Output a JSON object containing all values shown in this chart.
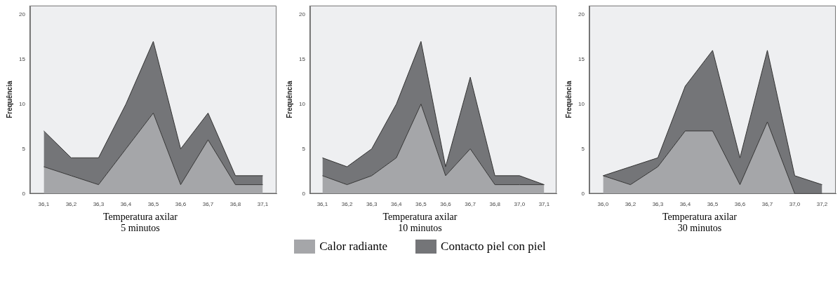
{
  "chart_data": [
    {
      "type": "area",
      "stacked": true,
      "xlabel": "Temperatura axilar",
      "subtitle": "5 minutos",
      "ylabel": "Frequência",
      "categories": [
        "36,1",
        "36,2",
        "36,3",
        "36,4",
        "36,5",
        "36,6",
        "36,7",
        "36,8",
        "37,1"
      ],
      "ylim": [
        0,
        21
      ],
      "yticks": [
        0,
        5,
        10,
        15,
        20
      ],
      "grid": false,
      "legend": "bottom",
      "series": [
        {
          "name": "Calor radiante",
          "color": "#a5a6a9",
          "values": [
            3,
            2,
            1,
            5,
            9,
            1,
            6,
            1,
            1
          ]
        },
        {
          "name": "Contacto piel con piel",
          "color": "#747578",
          "values": [
            4,
            2,
            3,
            5,
            8,
            4,
            3,
            1,
            1
          ]
        }
      ]
    },
    {
      "type": "area",
      "stacked": true,
      "xlabel": "Temperatura axilar",
      "subtitle": "10 minutos",
      "ylabel": "Frequência",
      "categories": [
        "36,1",
        "36,2",
        "36,3",
        "36,4",
        "36,5",
        "36,6",
        "36,7",
        "36,8",
        "37,0",
        "37,1"
      ],
      "ylim": [
        0,
        21
      ],
      "yticks": [
        0,
        5,
        10,
        15,
        20
      ],
      "grid": false,
      "series": [
        {
          "color": "#a5a6a9",
          "values": [
            2,
            1,
            2,
            4,
            10,
            2,
            5,
            1,
            1,
            1
          ]
        },
        {
          "color": "#747578",
          "values": [
            2,
            2,
            3,
            6,
            7,
            1,
            8,
            1,
            1,
            0
          ]
        }
      ]
    },
    {
      "type": "area",
      "stacked": true,
      "xlabel": "Temperatura axilar",
      "subtitle": "30 minutos",
      "ylabel": "Frequência",
      "categories": [
        "36,0",
        "36,2",
        "36,3",
        "36,4",
        "36,5",
        "36,6",
        "36,7",
        "37,0",
        "37,2"
      ],
      "ylim": [
        0,
        21
      ],
      "yticks": [
        0,
        5,
        10,
        15,
        20
      ],
      "grid": false,
      "series": [
        {
          "color": "#a5a6a9",
          "values": [
            2,
            1,
            3,
            7,
            7,
            1,
            8,
            0,
            0
          ]
        },
        {
          "color": "#747578",
          "values": [
            0,
            2,
            1,
            5,
            9,
            3,
            8,
            2,
            1
          ]
        }
      ]
    }
  ]
}
